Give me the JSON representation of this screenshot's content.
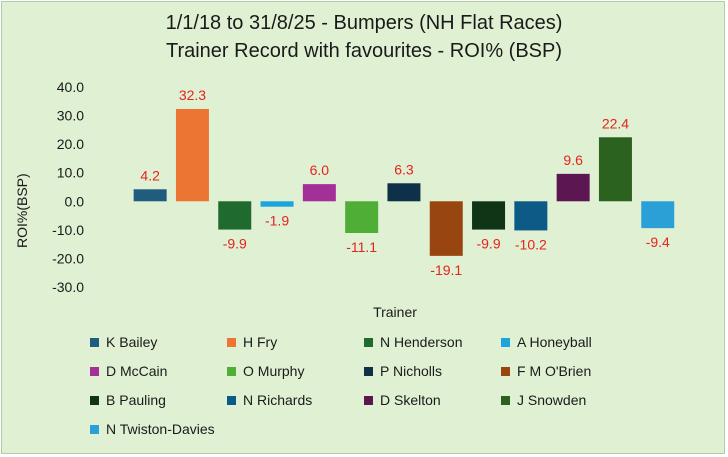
{
  "chart_data": {
    "type": "bar",
    "title": "1/1/18 to 31/8/25 - Bumpers (NH Flat Races)",
    "subtitle": "Trainer Record with favourites - ROI% (BSP)",
    "xlabel": "Trainer",
    "ylabel": "ROI%(BSP)",
    "ylim": [
      -30,
      40
    ],
    "yticks": [
      "40.0",
      "30.0",
      "20.0",
      "10.0",
      "0.0",
      "-10.0",
      "-20.0",
      "-30.0"
    ],
    "grid": false,
    "legend_position": "bottom",
    "label_color": "#e8231e",
    "series": [
      {
        "name": "K Bailey",
        "value": 4.2,
        "label": "4.2",
        "color": "#1f5c7e"
      },
      {
        "name": "H Fry",
        "value": 32.3,
        "label": "32.3",
        "color": "#ec7533"
      },
      {
        "name": "N Henderson",
        "value": -9.9,
        "label": "-9.9",
        "color": "#1f6b2f"
      },
      {
        "name": "A Honeyball",
        "value": -1.9,
        "label": "-1.9",
        "color": "#1ca4dc"
      },
      {
        "name": "D McCain",
        "value": 6.0,
        "label": "6.0",
        "color": "#a32f99"
      },
      {
        "name": "O Murphy",
        "value": -11.1,
        "label": "-11.1",
        "color": "#4eae36"
      },
      {
        "name": "P Nicholls",
        "value": 6.3,
        "label": "6.3",
        "color": "#0e3149"
      },
      {
        "name": "F M O'Brien",
        "value": -19.1,
        "label": "-19.1",
        "color": "#99450f"
      },
      {
        "name": "B Pauling",
        "value": -9.9,
        "label": "-9.9",
        "color": "#0f3516"
      },
      {
        "name": "N Richards",
        "value": -10.2,
        "label": "-10.2",
        "color": "#0e5a86"
      },
      {
        "name": "D Skelton",
        "value": 9.6,
        "label": "9.6",
        "color": "#5c1753"
      },
      {
        "name": "J Snowden",
        "value": 22.4,
        "label": "22.4",
        "color": "#2b6220"
      },
      {
        "name": "N Twiston-Davies",
        "value": -9.4,
        "label": "-9.4",
        "color": "#2ba0d6"
      }
    ]
  }
}
